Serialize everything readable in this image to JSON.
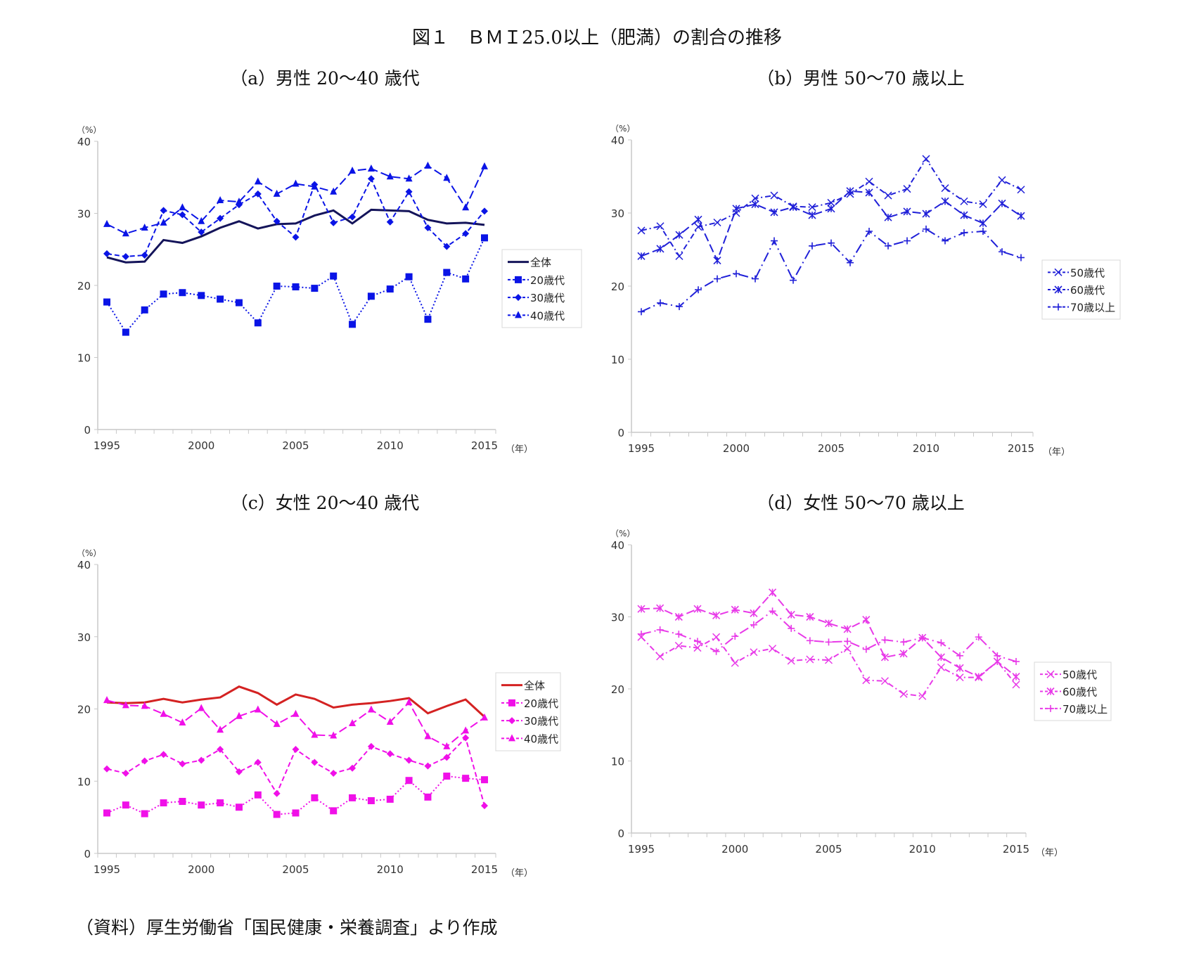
{
  "title": "図１　ＢＭＩ25.0以上（肥満）の割合の推移",
  "footer": "（資料）厚生労働省「国民健康・栄養調査」より作成",
  "chart_data": [
    {
      "type": "line",
      "title": "（a）男性 20～40 歳代",
      "ylabel": "（%）",
      "xlabel": "（年）",
      "x": [
        1995,
        1996,
        1997,
        1998,
        1999,
        2000,
        2001,
        2002,
        2003,
        2004,
        2005,
        2006,
        2007,
        2008,
        2009,
        2010,
        2011,
        2012,
        2013,
        2014,
        2015
      ],
      "xticks": [
        1995,
        2000,
        2005,
        2010,
        2015
      ],
      "ylim": [
        0,
        40
      ],
      "yticks": [
        0,
        10,
        20,
        30,
        40
      ],
      "legend": "right",
      "series": [
        {
          "name": "全体",
          "color": "#14145a",
          "marker": "none",
          "dash": "solid",
          "values": [
            23.9,
            23.2,
            23.3,
            26.3,
            25.9,
            26.8,
            28.0,
            28.9,
            27.9,
            28.5,
            28.6,
            29.7,
            30.4,
            28.6,
            30.5,
            30.4,
            30.3,
            29.1,
            28.6,
            28.7,
            28.4
          ]
        },
        {
          "name": "20歳代",
          "color": "#0a14e6",
          "marker": "square",
          "dash": "dotted",
          "values": [
            17.7,
            13.5,
            16.6,
            18.8,
            19.0,
            18.6,
            18.1,
            17.6,
            14.8,
            19.9,
            19.8,
            19.6,
            21.3,
            14.6,
            18.5,
            19.5,
            21.2,
            15.3,
            21.8,
            20.9,
            26.6
          ]
        },
        {
          "name": "30歳代",
          "color": "#0a14e6",
          "marker": "diamond",
          "dash": "dashed",
          "values": [
            24.4,
            24.0,
            24.2,
            30.4,
            29.8,
            27.4,
            29.3,
            31.2,
            32.7,
            28.9,
            26.7,
            34.0,
            28.7,
            29.5,
            34.8,
            28.8,
            33.0,
            28.0,
            25.4,
            27.2,
            30.3
          ]
        },
        {
          "name": "40歳代",
          "color": "#0a14e6",
          "marker": "triangle",
          "dash": "longdash",
          "values": [
            28.5,
            27.2,
            28.0,
            28.7,
            30.8,
            28.9,
            31.8,
            31.6,
            34.4,
            32.7,
            34.1,
            33.7,
            33.0,
            35.9,
            36.2,
            35.1,
            34.8,
            36.6,
            34.9,
            30.8,
            36.5
          ]
        }
      ]
    },
    {
      "type": "line",
      "title": "（b）男性 50～70 歳以上",
      "ylabel": "（%）",
      "xlabel": "（年）",
      "x": [
        1995,
        1996,
        1997,
        1998,
        1999,
        2000,
        2001,
        2002,
        2003,
        2004,
        2005,
        2006,
        2007,
        2008,
        2009,
        2010,
        2011,
        2012,
        2013,
        2014,
        2015
      ],
      "xticks": [
        1995,
        2000,
        2005,
        2010,
        2015
      ],
      "ylim": [
        0,
        40
      ],
      "yticks": [
        0,
        10,
        20,
        30,
        40
      ],
      "legend": "right",
      "series": [
        {
          "name": "50歳代",
          "color": "#2020d8",
          "marker": "x",
          "dash": "dashdot",
          "values": [
            27.6,
            28.2,
            24.1,
            28.1,
            28.7,
            30.0,
            32.0,
            32.4,
            30.9,
            30.8,
            31.4,
            32.6,
            34.3,
            32.4,
            33.3,
            37.4,
            33.4,
            31.6,
            31.2,
            34.5,
            33.2
          ]
        },
        {
          "name": "60歳代",
          "color": "#2020d8",
          "marker": "asterisk",
          "dash": "longdash",
          "values": [
            24.1,
            25.1,
            27.0,
            29.1,
            23.5,
            30.6,
            31.2,
            30.1,
            30.8,
            29.7,
            30.6,
            33.0,
            32.8,
            29.4,
            30.2,
            29.9,
            31.6,
            29.7,
            28.6,
            31.3,
            29.6
          ]
        },
        {
          "name": "70歳以上",
          "color": "#2020d8",
          "marker": "plus",
          "dash": "longdashdot",
          "values": [
            16.5,
            17.7,
            17.2,
            19.5,
            21.0,
            21.7,
            21.0,
            26.2,
            20.8,
            25.5,
            25.9,
            23.2,
            27.5,
            25.5,
            26.2,
            27.8,
            26.2,
            27.3,
            27.5,
            24.7,
            23.9
          ]
        }
      ]
    },
    {
      "type": "line",
      "title": "（c）女性 20～40 歳代",
      "ylabel": "（%）",
      "xlabel": "（年）",
      "x": [
        1995,
        1996,
        1997,
        1998,
        1999,
        2000,
        2001,
        2002,
        2003,
        2004,
        2005,
        2006,
        2007,
        2008,
        2009,
        2010,
        2011,
        2012,
        2013,
        2014,
        2015
      ],
      "xticks": [
        1995,
        2000,
        2005,
        2010,
        2015
      ],
      "ylim": [
        0,
        40
      ],
      "yticks": [
        0,
        10,
        20,
        30,
        40
      ],
      "legend": "right",
      "series": [
        {
          "name": "全体",
          "color": "#d42222",
          "marker": "none",
          "dash": "solid",
          "values": [
            20.9,
            20.8,
            20.9,
            21.4,
            20.9,
            21.3,
            21.6,
            23.1,
            22.2,
            20.6,
            22.0,
            21.4,
            20.2,
            20.6,
            20.8,
            21.1,
            21.5,
            19.4,
            20.4,
            21.3,
            18.9
          ]
        },
        {
          "name": "20歳代",
          "color": "#f010e8",
          "marker": "square",
          "dash": "dotted",
          "values": [
            5.6,
            6.7,
            5.5,
            7.0,
            7.2,
            6.7,
            7.0,
            6.4,
            8.1,
            5.4,
            5.6,
            7.7,
            5.9,
            7.7,
            7.3,
            7.5,
            10.1,
            7.8,
            10.7,
            10.4,
            10.2
          ]
        },
        {
          "name": "30歳代",
          "color": "#f010e8",
          "marker": "diamond",
          "dash": "dashed",
          "values": [
            11.7,
            11.1,
            12.8,
            13.7,
            12.4,
            12.9,
            14.4,
            11.3,
            12.6,
            8.3,
            14.4,
            12.6,
            11.1,
            11.8,
            14.8,
            13.8,
            12.9,
            12.1,
            13.3,
            16.0,
            6.6
          ]
        },
        {
          "name": "40歳代",
          "color": "#f010e8",
          "marker": "triangle",
          "dash": "longdash",
          "values": [
            21.2,
            20.5,
            20.4,
            19.3,
            18.1,
            20.1,
            17.1,
            19.0,
            19.9,
            17.9,
            19.3,
            16.4,
            16.3,
            18.0,
            19.9,
            18.2,
            20.9,
            16.2,
            14.8,
            17.0,
            18.8
          ]
        }
      ]
    },
    {
      "type": "line",
      "title": "（d）女性 50～70 歳以上",
      "ylabel": "（%）",
      "xlabel": "（年）",
      "x": [
        1995,
        1996,
        1997,
        1998,
        1999,
        2000,
        2001,
        2002,
        2003,
        2004,
        2005,
        2006,
        2007,
        2008,
        2009,
        2010,
        2011,
        2012,
        2013,
        2014,
        2015
      ],
      "xticks": [
        1995,
        2000,
        2005,
        2010,
        2015
      ],
      "ylim": [
        0,
        40
      ],
      "yticks": [
        0,
        10,
        20,
        30,
        40
      ],
      "legend": "right",
      "series": [
        {
          "name": "50歳代",
          "color": "#e83ae8",
          "marker": "x",
          "dash": "dashdot",
          "values": [
            27.2,
            24.5,
            26.0,
            25.7,
            27.2,
            23.6,
            25.1,
            25.6,
            23.9,
            24.1,
            24.0,
            25.6,
            21.2,
            21.1,
            19.3,
            19.0,
            23.0,
            21.6,
            21.6,
            23.8,
            20.6
          ]
        },
        {
          "name": "60歳代",
          "color": "#e83ae8",
          "marker": "asterisk",
          "dash": "longdash",
          "values": [
            31.1,
            31.2,
            30.0,
            31.1,
            30.2,
            31.0,
            30.5,
            33.4,
            30.3,
            30.0,
            29.1,
            28.3,
            29.6,
            24.4,
            24.9,
            27.1,
            24.4,
            22.9,
            21.7,
            23.8,
            21.7
          ]
        },
        {
          "name": "70歳以上",
          "color": "#e83ae8",
          "marker": "plus",
          "dash": "longdashdot",
          "values": [
            27.6,
            28.2,
            27.6,
            26.6,
            25.2,
            27.3,
            28.9,
            30.8,
            28.4,
            26.7,
            26.5,
            26.6,
            25.5,
            26.8,
            26.5,
            27.1,
            26.4,
            24.6,
            27.2,
            24.6,
            23.8
          ]
        }
      ]
    }
  ]
}
